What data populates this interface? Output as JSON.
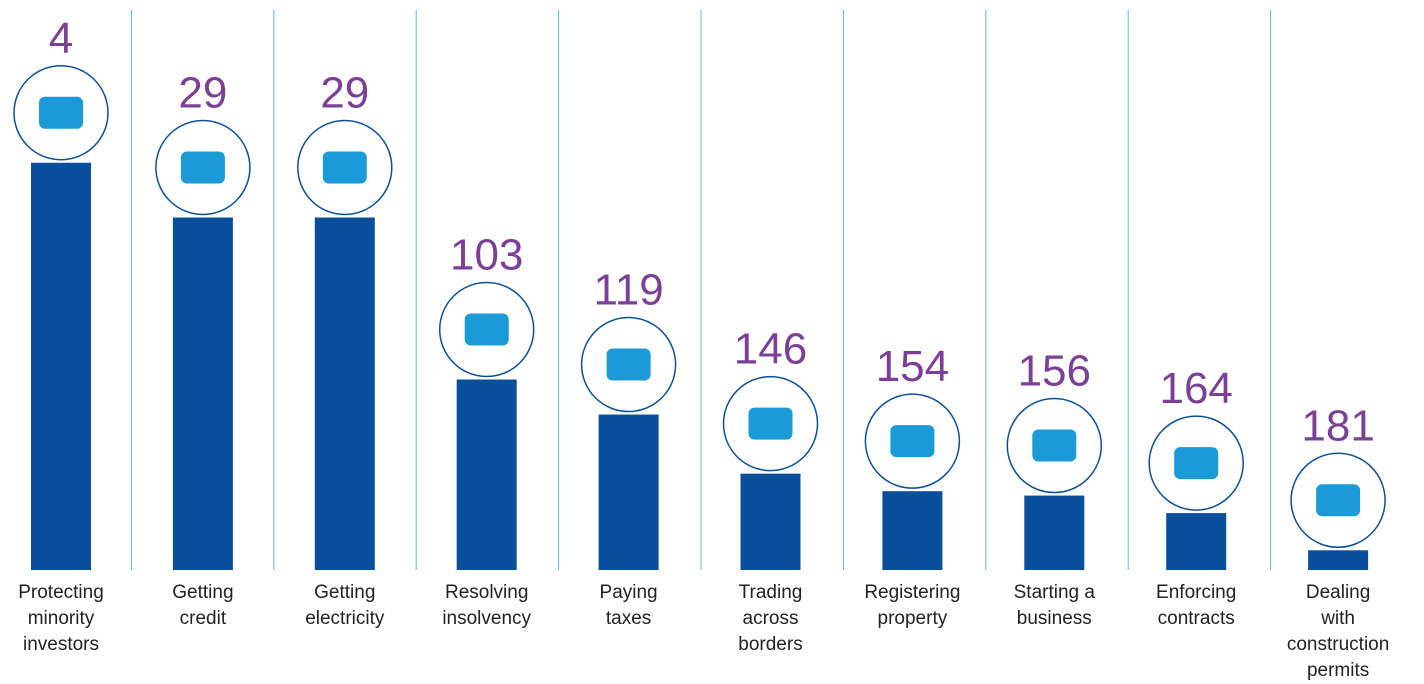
{
  "chart_data": {
    "type": "bar",
    "categories": [
      "Protecting\nminority\ninvestors",
      "Getting\ncredit",
      "Getting\nelectricity",
      "Resolving\ninsolvency",
      "Paying\ntaxes",
      "Trading\nacross\nborders",
      "Registering\nproperty",
      "Starting a\nbusiness",
      "Enforcing\ncontracts",
      "Dealing\nwith\nconstruction\npermits"
    ],
    "values": [
      4,
      29,
      29,
      103,
      119,
      146,
      154,
      156,
      164,
      181
    ],
    "color": "#0a4f9c",
    "label_color": "#7b3f98",
    "ylim": [
      190,
      0
    ]
  }
}
